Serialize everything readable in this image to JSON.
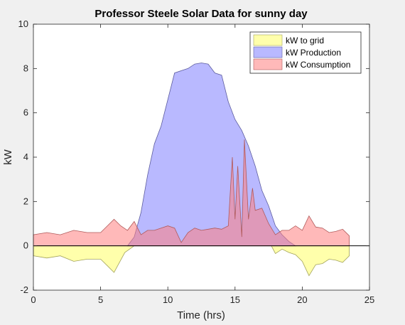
{
  "chart_data": {
    "type": "area",
    "title": "Professor Steele Solar Data for sunny day",
    "xlabel": "Time (hrs)",
    "ylabel": "kW",
    "xlim": [
      0,
      25
    ],
    "ylim": [
      -2,
      10
    ],
    "xticks": [
      0,
      5,
      10,
      15,
      20,
      25
    ],
    "yticks": [
      -2,
      0,
      2,
      4,
      6,
      8,
      10
    ],
    "grid": false,
    "legend_position": "top-right",
    "series": [
      {
        "name": "kW to grid",
        "color": "#ffff66",
        "edge": "#a3a35c",
        "x": [
          0,
          1,
          2,
          3,
          4,
          5,
          5.5,
          6,
          6.8,
          7.5,
          8.0,
          8.5,
          17.7,
          18,
          18.5,
          19,
          19.5,
          20,
          20.5,
          21,
          21.5,
          22,
          22.5,
          23,
          23.5
        ],
        "y": [
          -0.45,
          -0.55,
          -0.45,
          -0.7,
          -0.6,
          -0.6,
          -0.9,
          -1.2,
          -0.3,
          0,
          0,
          0,
          0,
          -0.35,
          -0.15,
          -0.3,
          -0.4,
          -0.7,
          -1.35,
          -0.85,
          -0.8,
          -0.6,
          -0.65,
          -0.75,
          -0.45
        ]
      },
      {
        "name": "kW Production",
        "color": "#7f7fff",
        "edge": "#5c5c9e",
        "x": [
          7.0,
          7.5,
          8.0,
          8.5,
          9.0,
          9.5,
          10.0,
          10.5,
          11.0,
          11.5,
          12.0,
          12.5,
          13.0,
          13.5,
          14.0,
          14.5,
          15.0,
          15.5,
          16.0,
          16.5,
          17.0,
          17.5,
          18.0,
          18.5,
          19.0,
          19.5
        ],
        "y": [
          0,
          0.4,
          1.5,
          3.2,
          4.6,
          5.4,
          6.6,
          7.8,
          7.9,
          8.0,
          8.2,
          8.25,
          8.2,
          7.8,
          7.7,
          6.5,
          5.7,
          5.2,
          4.5,
          3.6,
          2.5,
          1.8,
          0.9,
          0.5,
          0.2,
          0
        ]
      },
      {
        "name": "kW Consumption",
        "color": "#ff7f7f",
        "edge": "#b05a5a",
        "x": [
          0,
          1,
          2,
          3,
          4,
          5,
          5.5,
          6,
          6.5,
          7,
          7.5,
          8,
          8.5,
          9,
          9.5,
          10,
          10.5,
          11,
          11.5,
          12,
          12.5,
          13,
          13.5,
          14,
          14.5,
          14.8,
          15,
          15.2,
          15.5,
          15.7,
          16,
          16.3,
          16.5,
          17,
          17.5,
          18,
          18.5,
          19,
          19.5,
          20,
          20.5,
          21,
          21.5,
          22,
          22.5,
          23,
          23.5
        ],
        "y": [
          0.5,
          0.6,
          0.5,
          0.7,
          0.6,
          0.6,
          0.9,
          1.2,
          0.9,
          0.7,
          1.1,
          0.5,
          0.7,
          0.7,
          0.8,
          0.9,
          0.8,
          0.15,
          0.6,
          0.8,
          0.7,
          0.75,
          0.8,
          0.75,
          0.9,
          4.0,
          1.2,
          3.6,
          0.4,
          4.8,
          1.2,
          2.6,
          1.6,
          1.7,
          1.0,
          0.5,
          0.7,
          0.7,
          0.9,
          0.7,
          1.35,
          0.85,
          0.8,
          0.6,
          0.65,
          0.75,
          0.45
        ]
      }
    ]
  }
}
